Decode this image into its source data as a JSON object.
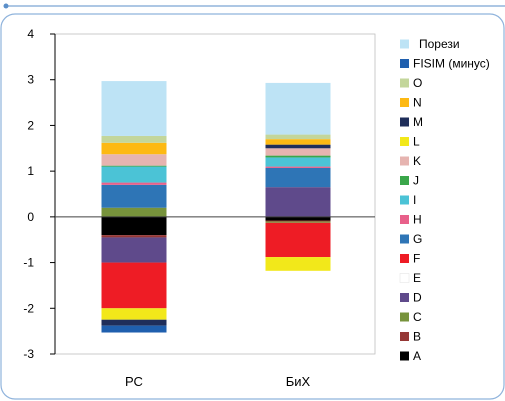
{
  "chart_data": {
    "type": "bar",
    "stacked": true,
    "diverging": true,
    "categories": [
      "РС",
      "БиХ"
    ],
    "ylim": [
      -3,
      4
    ],
    "yticks": [
      -3,
      -2,
      -1,
      0,
      1,
      2,
      3,
      4
    ],
    "grid": false,
    "legend_position": "right",
    "series": [
      {
        "name": "A",
        "color": "#000000",
        "values": [
          -0.4,
          -0.08
        ]
      },
      {
        "name": "B",
        "color": "#953735",
        "values": [
          -0.05,
          -0.02
        ]
      },
      {
        "name": "C",
        "color": "#77933c",
        "values": [
          0.2,
          -0.03
        ]
      },
      {
        "name": "D",
        "color": "#5f4a8b",
        "values": [
          -0.55,
          0.65
        ]
      },
      {
        "name": "E",
        "color": "#ffffff",
        "values": [
          0.0,
          0.0
        ]
      },
      {
        "name": "F",
        "color": "#ee1c25",
        "values": [
          -1.0,
          -0.75
        ]
      },
      {
        "name": "G",
        "color": "#2e75b6",
        "values": [
          0.5,
          0.42
        ]
      },
      {
        "name": "H",
        "color": "#e8608a",
        "values": [
          0.05,
          0.03
        ]
      },
      {
        "name": "I",
        "color": "#4bc3d6",
        "values": [
          0.35,
          0.2
        ]
      },
      {
        "name": "J",
        "color": "#3aa64a",
        "values": [
          0.02,
          0.04
        ]
      },
      {
        "name": "K",
        "color": "#e6b4b0",
        "values": [
          0.25,
          0.16
        ]
      },
      {
        "name": "L",
        "color": "#f2e81a",
        "values": [
          -0.25,
          -0.3
        ]
      },
      {
        "name": "M",
        "color": "#1f2e5a",
        "values": [
          -0.13,
          0.08
        ]
      },
      {
        "name": "N",
        "color": "#fdb913",
        "values": [
          0.25,
          0.12
        ]
      },
      {
        "name": "O",
        "color": "#c3d69b",
        "values": [
          0.15,
          0.1
        ]
      },
      {
        "name": "FISIM (минус)",
        "color": "#1f5fae",
        "values": [
          -0.15,
          0.0
        ]
      },
      {
        "name": "Порези",
        "color": "#bde3f5",
        "values": [
          1.2,
          1.13
        ]
      }
    ]
  }
}
